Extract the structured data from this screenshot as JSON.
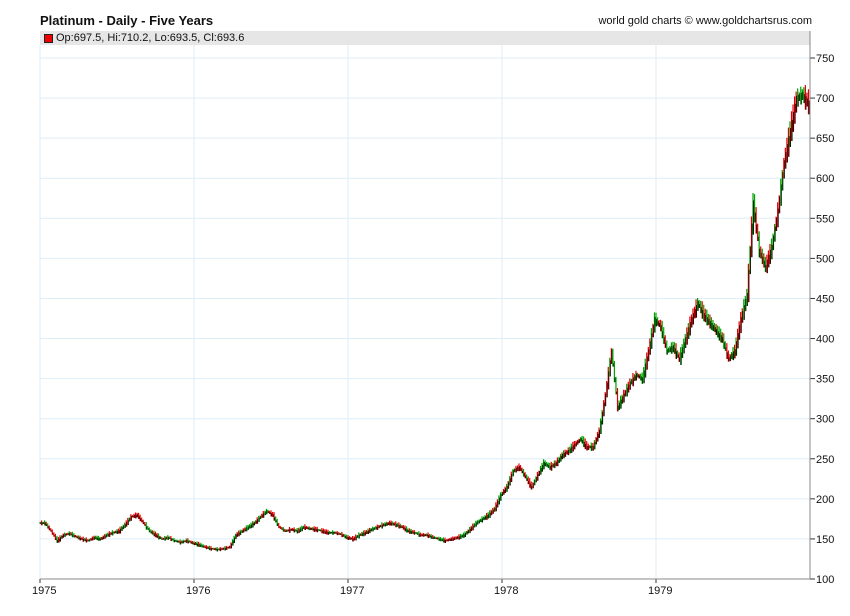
{
  "header": {
    "title": "Platinum - Daily - Five Years",
    "credit": "world gold charts © www.goldchartsrus.com"
  },
  "legend": {
    "label": "Op:697.5, Hi:710.2, Lo:693.5, Cl:693.6",
    "color": "#e00000"
  },
  "chart_data": {
    "type": "line",
    "title": "Platinum - Daily - Five Years",
    "xlabel": "",
    "ylabel": "",
    "xlim": [
      1975,
      1980
    ],
    "ylim": [
      100,
      760
    ],
    "x_ticks": [
      "1975",
      "1976",
      "1977",
      "1978",
      "1979"
    ],
    "y_ticks": [
      "100",
      "150",
      "200",
      "250",
      "300",
      "350",
      "400",
      "450",
      "500",
      "550",
      "600",
      "650",
      "700",
      "750"
    ],
    "grid": true,
    "series_start": 1975,
    "points_per_year": 25,
    "colors": {
      "up": "#00a000",
      "down": "#e00000",
      "tick": "#000000",
      "grid": "#ddeef8"
    },
    "close": [
      170,
      160,
      148,
      155,
      157,
      153,
      150,
      148,
      152,
      150,
      155,
      158,
      160,
      168,
      178,
      180,
      170,
      160,
      155,
      150,
      152,
      148,
      146,
      148,
      145,
      143,
      140,
      138,
      137,
      138,
      140,
      155,
      160,
      165,
      170,
      178,
      185,
      180,
      165,
      160,
      162,
      160,
      165,
      163,
      162,
      160,
      158,
      158,
      156,
      152,
      150,
      155,
      158,
      162,
      165,
      168,
      170,
      168,
      165,
      160,
      158,
      155,
      155,
      152,
      150,
      148,
      150,
      152,
      155,
      162,
      170,
      175,
      180,
      188,
      205,
      215,
      235,
      240,
      228,
      215,
      230,
      245,
      240,
      245,
      255,
      260,
      268,
      275,
      265,
      265,
      285,
      330,
      385,
      315,
      330,
      345,
      355,
      350,
      385,
      425,
      415,
      385,
      390,
      375,
      400,
      425,
      445,
      430,
      420,
      410,
      400,
      375,
      385,
      425,
      455,
      570,
      510,
      490,
      515,
      560,
      620,
      660,
      700,
      705,
      694
    ]
  }
}
